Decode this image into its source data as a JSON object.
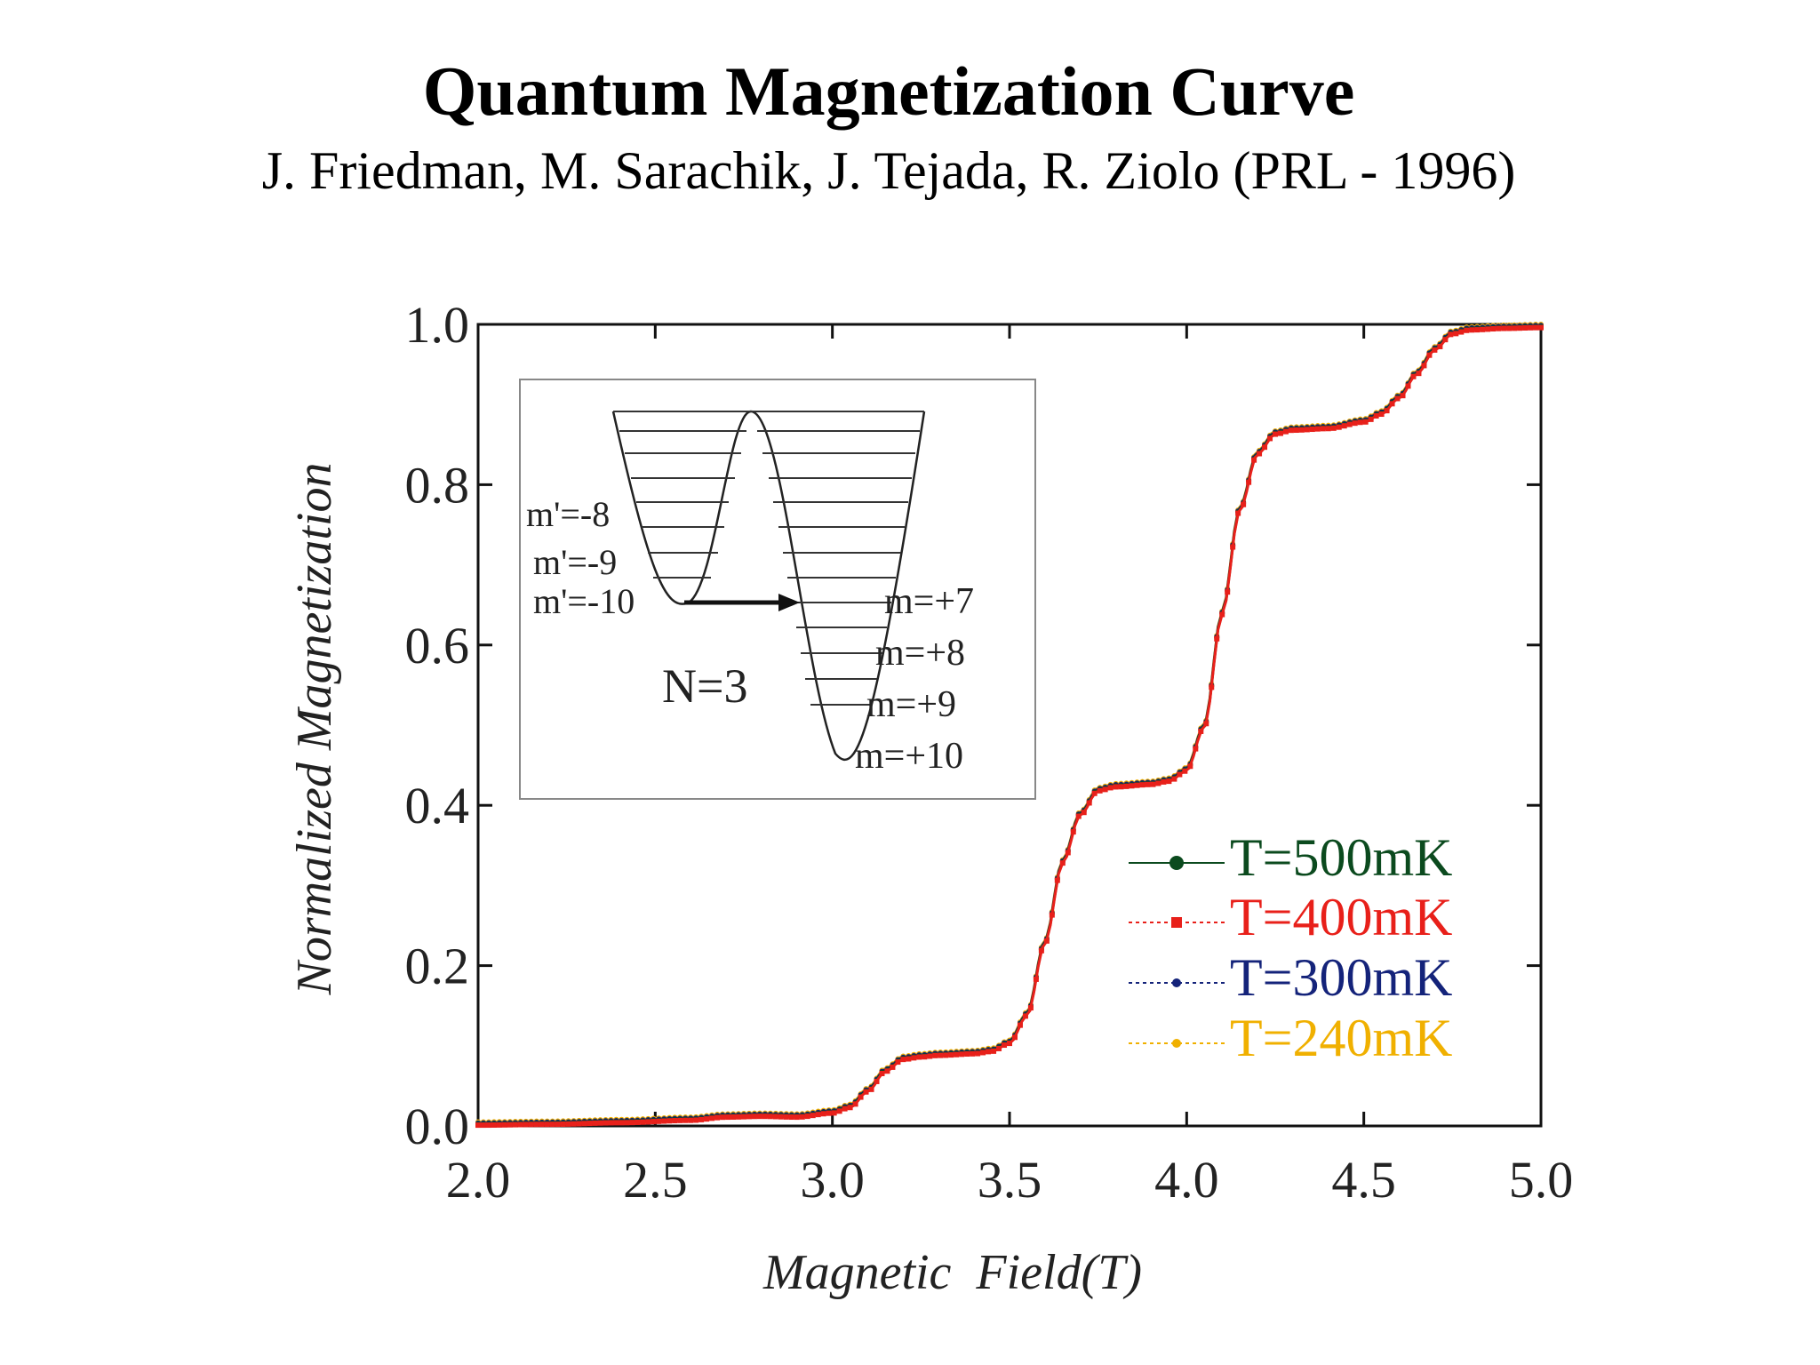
{
  "title": "Quantum Magnetization Curve",
  "subtitle": "J. Friedman, M. Sarachik, J. Tejada, R. Ziolo (PRL - 1996)",
  "colors": {
    "T500": "#0b4a1e",
    "T400": "#e8201a",
    "T300": "#14237a",
    "T240": "#f0b000",
    "axis": "#111111"
  },
  "chart_data": {
    "type": "line",
    "title": "",
    "xlabel": "Magnetic  Field(T)",
    "ylabel": "Normalized Magnetization",
    "xlim": [
      2.0,
      5.0
    ],
    "ylim": [
      0.0,
      1.0
    ],
    "x_ticks": [
      "2.0",
      "2.5",
      "3.0",
      "3.5",
      "4.0",
      "4.5",
      "5.0"
    ],
    "y_ticks": [
      "0.0",
      "0.2",
      "0.4",
      "0.6",
      "0.8",
      "1.0"
    ],
    "grid": false,
    "legend_position": "lower-right",
    "x": [
      2.0,
      2.2,
      2.4,
      2.6,
      2.7,
      2.8,
      2.9,
      3.0,
      3.05,
      3.1,
      3.15,
      3.2,
      3.25,
      3.3,
      3.4,
      3.45,
      3.5,
      3.55,
      3.6,
      3.65,
      3.7,
      3.75,
      3.8,
      3.9,
      3.95,
      4.0,
      4.05,
      4.1,
      4.15,
      4.2,
      4.25,
      4.3,
      4.4,
      4.5,
      4.55,
      4.6,
      4.65,
      4.7,
      4.75,
      4.8,
      4.9,
      5.0
    ],
    "series": [
      {
        "name": "T=500mK",
        "values": [
          0.003,
          0.004,
          0.006,
          0.009,
          0.013,
          0.014,
          0.013,
          0.018,
          0.025,
          0.045,
          0.07,
          0.085,
          0.088,
          0.09,
          0.092,
          0.095,
          0.105,
          0.14,
          0.23,
          0.33,
          0.39,
          0.42,
          0.425,
          0.428,
          0.432,
          0.445,
          0.5,
          0.64,
          0.77,
          0.84,
          0.865,
          0.87,
          0.872,
          0.88,
          0.89,
          0.91,
          0.94,
          0.97,
          0.99,
          0.995,
          0.997,
          0.998
        ]
      },
      {
        "name": "T=400mK",
        "values": [
          0.003,
          0.004,
          0.006,
          0.009,
          0.013,
          0.014,
          0.013,
          0.018,
          0.025,
          0.045,
          0.07,
          0.085,
          0.088,
          0.09,
          0.092,
          0.095,
          0.105,
          0.14,
          0.23,
          0.33,
          0.39,
          0.42,
          0.425,
          0.428,
          0.432,
          0.445,
          0.5,
          0.64,
          0.77,
          0.84,
          0.865,
          0.87,
          0.872,
          0.88,
          0.89,
          0.91,
          0.94,
          0.97,
          0.99,
          0.995,
          0.997,
          0.998
        ]
      },
      {
        "name": "T=300mK",
        "values": [
          0.003,
          0.004,
          0.006,
          0.009,
          0.013,
          0.014,
          0.013,
          0.018,
          0.025,
          0.045,
          0.07,
          0.085,
          0.088,
          0.09,
          0.092,
          0.095,
          0.105,
          0.14,
          0.23,
          0.33,
          0.39,
          0.42,
          0.425,
          0.428,
          0.432,
          0.445,
          0.5,
          0.64,
          0.77,
          0.84,
          0.865,
          0.87,
          0.872,
          0.88,
          0.89,
          0.91,
          0.94,
          0.97,
          0.99,
          0.995,
          0.997,
          0.998
        ]
      },
      {
        "name": "T=240mK",
        "values": [
          0.003,
          0.004,
          0.006,
          0.009,
          0.013,
          0.014,
          0.013,
          0.018,
          0.025,
          0.045,
          0.07,
          0.085,
          0.088,
          0.09,
          0.092,
          0.095,
          0.105,
          0.14,
          0.23,
          0.33,
          0.39,
          0.42,
          0.425,
          0.428,
          0.432,
          0.445,
          0.5,
          0.64,
          0.77,
          0.84,
          0.865,
          0.87,
          0.872,
          0.88,
          0.89,
          0.91,
          0.94,
          0.97,
          0.99,
          0.995,
          0.997,
          0.998
        ]
      }
    ],
    "inset": {
      "left_labels": [
        "m'=-8",
        "m'=-9",
        "m'=-10"
      ],
      "right_labels": [
        "m=+7",
        "m=+8",
        "m=+9",
        "m=+10"
      ],
      "annotation": "N=3"
    }
  }
}
